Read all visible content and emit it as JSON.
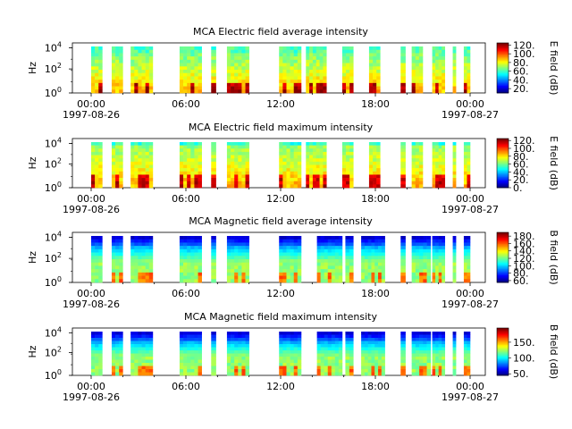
{
  "chart_data": [
    {
      "type": "heatmap",
      "title": "MCA  Electric field average intensity",
      "ylabel": "Hz",
      "yticks": [
        "10^0",
        "10^2",
        "10^4"
      ],
      "xticks": [
        {
          "time": "00:00",
          "date": "1997-08-26"
        },
        {
          "time": "06:00",
          "date": ""
        },
        {
          "time": "12:00",
          "date": ""
        },
        {
          "time": "18:00",
          "date": ""
        },
        {
          "time": "00:00",
          "date": "1997-08-27"
        }
      ],
      "colorbar_label": "E field (dB)",
      "colorbar_ticks": [
        "20.",
        "40.",
        "60.",
        "80.",
        "100.",
        "120."
      ],
      "colorbar_range": [
        10,
        125
      ],
      "data_hours": [
        [
          0.0,
          0.7
        ],
        [
          1.3,
          2.0
        ],
        [
          2.5,
          3.9
        ],
        [
          5.6,
          7.0
        ],
        [
          7.6,
          7.9
        ],
        [
          8.6,
          10.0
        ],
        [
          11.9,
          13.3
        ],
        [
          13.6,
          14.9
        ],
        [
          15.9,
          16.6
        ],
        [
          17.6,
          18.3
        ],
        [
          19.6,
          19.9
        ],
        [
          20.3,
          21.0
        ],
        [
          21.6,
          22.4
        ],
        [
          22.9,
          23.1
        ],
        [
          23.6,
          24.0
        ]
      ],
      "palette": "high"
    },
    {
      "type": "heatmap",
      "title": "MCA  Electric field maximum intensity",
      "ylabel": "Hz",
      "yticks": [
        "10^0",
        "10^2",
        "10^4"
      ],
      "xticks": [
        {
          "time": "00:00",
          "date": "1997-08-26"
        },
        {
          "time": "06:00",
          "date": ""
        },
        {
          "time": "12:00",
          "date": ""
        },
        {
          "time": "18:00",
          "date": ""
        },
        {
          "time": "00:00",
          "date": "1997-08-27"
        }
      ],
      "colorbar_label": "E field (dB)",
      "colorbar_ticks": [
        "0.",
        "20.",
        "40.",
        "60.",
        "80.",
        "100.",
        "120."
      ],
      "colorbar_range": [
        0,
        125
      ],
      "data_hours": [
        [
          0.0,
          0.7
        ],
        [
          1.3,
          2.0
        ],
        [
          2.5,
          3.9
        ],
        [
          5.6,
          7.0
        ],
        [
          7.6,
          7.9
        ],
        [
          8.6,
          10.0
        ],
        [
          11.9,
          13.3
        ],
        [
          13.6,
          14.9
        ],
        [
          15.9,
          16.6
        ],
        [
          17.6,
          18.3
        ],
        [
          19.6,
          19.9
        ],
        [
          20.3,
          21.0
        ],
        [
          21.6,
          22.4
        ],
        [
          22.9,
          23.1
        ],
        [
          23.6,
          24.0
        ]
      ],
      "palette": "mid"
    },
    {
      "type": "heatmap",
      "title": "MCA  Magnetic field average intensity",
      "ylabel": "Hz",
      "yticks": [
        "10^0",
        "10^2",
        "10^4"
      ],
      "xticks": [
        {
          "time": "00:00",
          "date": "1997-08-26"
        },
        {
          "time": "06:00",
          "date": ""
        },
        {
          "time": "12:00",
          "date": ""
        },
        {
          "time": "18:00",
          "date": ""
        },
        {
          "time": "00:00",
          "date": "1997-08-27"
        }
      ],
      "colorbar_label": "B field (dB)",
      "colorbar_ticks": [
        "60.",
        "80.",
        "100.",
        "120.",
        "140.",
        "160.",
        "180."
      ],
      "colorbar_range": [
        55,
        190
      ],
      "data_hours": [
        [
          0.0,
          0.7
        ],
        [
          1.3,
          2.0
        ],
        [
          2.5,
          3.9
        ],
        [
          5.6,
          7.0
        ],
        [
          7.6,
          7.9
        ],
        [
          8.6,
          10.0
        ],
        [
          11.9,
          13.3
        ],
        [
          14.3,
          15.9
        ],
        [
          16.1,
          16.6
        ],
        [
          17.1,
          18.6
        ],
        [
          19.6,
          19.9
        ],
        [
          20.3,
          21.5
        ],
        [
          21.6,
          22.4
        ],
        [
          22.9,
          23.1
        ],
        [
          23.6,
          24.0
        ]
      ],
      "palette": "mag"
    },
    {
      "type": "heatmap",
      "title": "MCA  Magnetic field maximum intensity",
      "ylabel": "Hz",
      "yticks": [
        "10^0",
        "10^2",
        "10^4"
      ],
      "xticks": [
        {
          "time": "00:00",
          "date": "1997-08-26"
        },
        {
          "time": "06:00",
          "date": ""
        },
        {
          "time": "12:00",
          "date": ""
        },
        {
          "time": "18:00",
          "date": ""
        },
        {
          "time": "00:00",
          "date": "1997-08-27"
        }
      ],
      "colorbar_label": "B field (dB)",
      "colorbar_ticks": [
        "50.",
        "100.",
        "150."
      ],
      "colorbar_range": [
        45,
        195
      ],
      "data_hours": [
        [
          0.0,
          0.7
        ],
        [
          1.3,
          2.0
        ],
        [
          2.5,
          3.9
        ],
        [
          5.6,
          7.0
        ],
        [
          7.6,
          7.9
        ],
        [
          8.6,
          10.0
        ],
        [
          11.9,
          13.3
        ],
        [
          14.3,
          15.9
        ],
        [
          16.1,
          16.6
        ],
        [
          17.1,
          18.6
        ],
        [
          19.6,
          19.9
        ],
        [
          20.3,
          21.5
        ],
        [
          21.6,
          22.4
        ],
        [
          22.9,
          23.1
        ],
        [
          23.6,
          24.0
        ]
      ],
      "palette": "mag"
    }
  ]
}
